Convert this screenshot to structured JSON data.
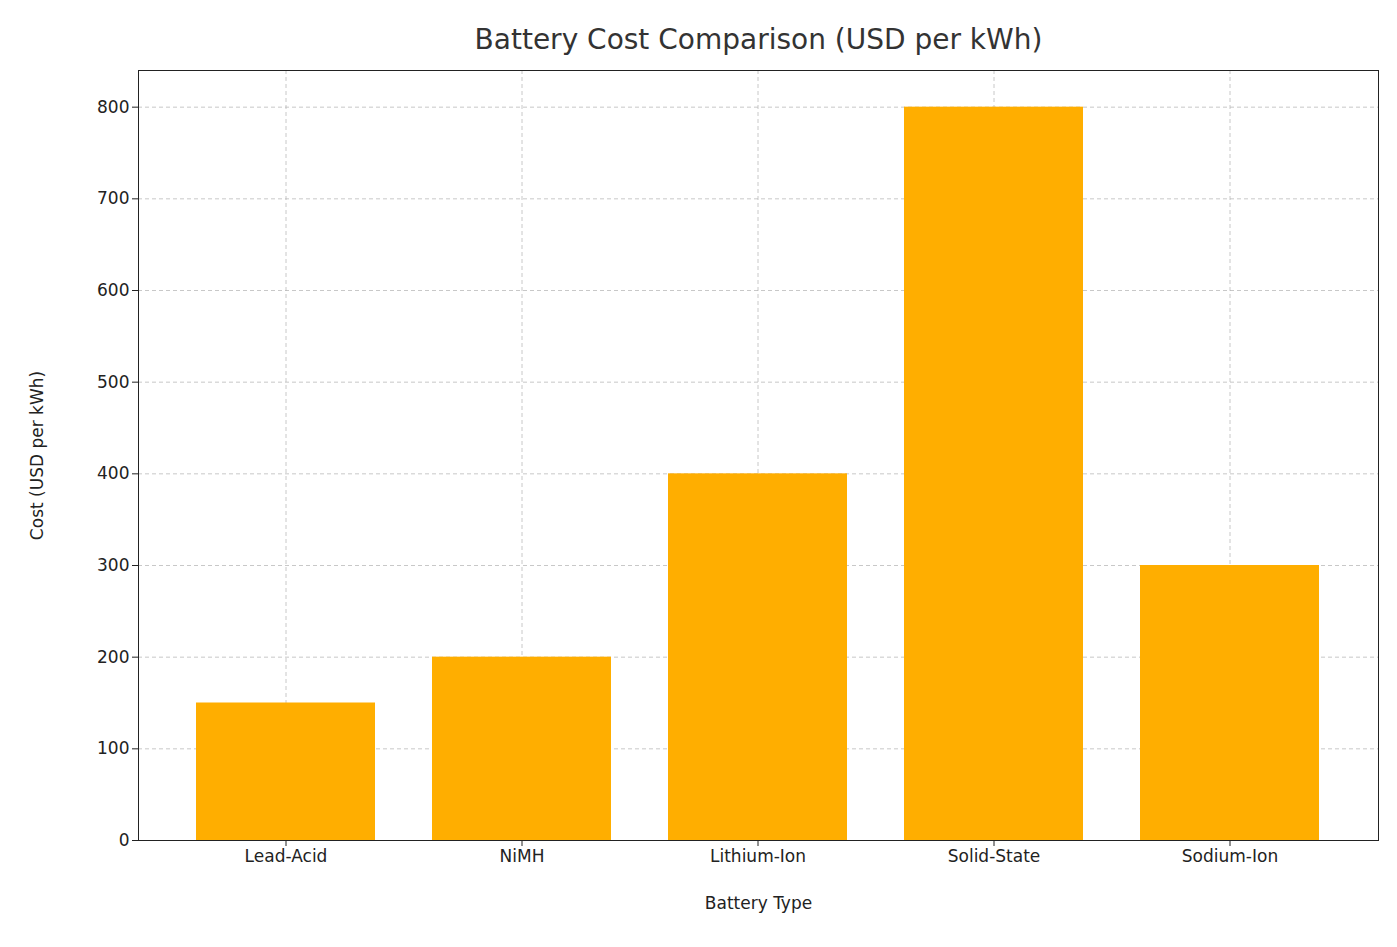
{
  "chart_data": {
    "type": "bar",
    "title": "Battery Cost Comparison (USD per kWh)",
    "x_label": "Battery Type",
    "y_label": "Cost (USD per kWh)",
    "categories": [
      "Lead-Acid",
      "NiMH",
      "Lithium-Ion",
      "Solid-State",
      "Sodium-Ion"
    ],
    "values": [
      150,
      200,
      400,
      800,
      300
    ],
    "color": "#ffae00",
    "ylim": [
      0,
      840
    ],
    "yticks": [
      0,
      100,
      200,
      300,
      400,
      500,
      600,
      700,
      800
    ],
    "grid": true
  }
}
